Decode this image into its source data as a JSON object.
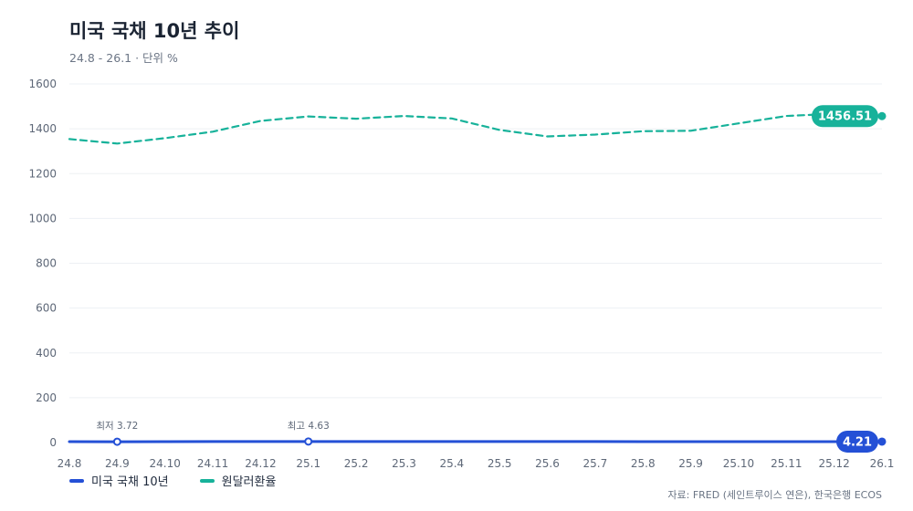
{
  "chart_data": {
    "type": "line",
    "title": "미국 국채 10년 추이",
    "subtitle": "24.8 - 26.1 · 단위 %",
    "x": [
      "24.8",
      "24.9",
      "24.10",
      "24.11",
      "24.12",
      "25.1",
      "25.2",
      "25.3",
      "25.4",
      "25.5",
      "25.6",
      "25.7",
      "25.8",
      "25.9",
      "25.10",
      "25.11",
      "25.12",
      "26.1"
    ],
    "ylim": [
      0,
      1600
    ],
    "yticks": [
      0,
      200,
      400,
      600,
      800,
      1000,
      1200,
      1400,
      1600
    ],
    "grid": true,
    "legend_position": "bottom-left",
    "series": [
      {
        "name": "미국 국채 10년",
        "color": "#2450d6",
        "style": "solid",
        "values": [
          3.91,
          3.72,
          4.09,
          4.37,
          4.39,
          4.63,
          4.45,
          4.28,
          4.28,
          4.42,
          4.38,
          4.37,
          4.26,
          4.12,
          4.06,
          4.09,
          4.14,
          4.21
        ]
      },
      {
        "name": "원달러환율",
        "color": "#17b29a",
        "style": "dashed",
        "values": [
          1354,
          1334,
          1358,
          1387,
          1435,
          1455,
          1445,
          1457,
          1446,
          1395,
          1366,
          1374,
          1389,
          1391,
          1424,
          1457,
          1467,
          1456.51
        ]
      }
    ],
    "annotations": [
      {
        "series": 0,
        "index": 1,
        "label": "최저 3.72"
      },
      {
        "series": 0,
        "index": 5,
        "label": "최고 4.63"
      }
    ],
    "end_labels": [
      {
        "series": 0,
        "text": "4.21"
      },
      {
        "series": 1,
        "text": "1456.51"
      }
    ]
  },
  "source": "자료: FRED (세인트루이스 연은), 한국은행 ECOS"
}
